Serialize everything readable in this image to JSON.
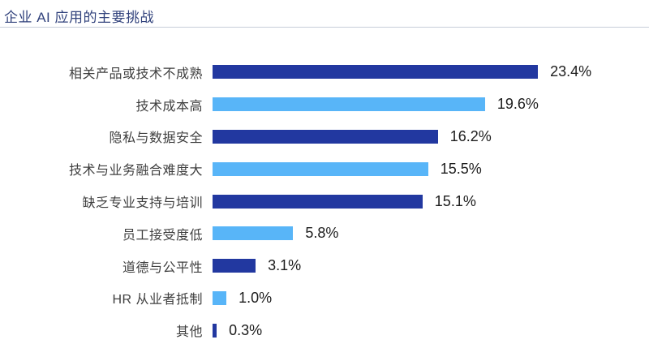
{
  "header": {
    "title": "企业 AI 应用的主要挑战"
  },
  "colors": {
    "dark_blue": "#2238a0",
    "light_blue": "#58b5f8",
    "title_text": "#31427c",
    "label_text": "#3f3f3f",
    "value_text": "#1c1c1c",
    "divider": "#c7cdd9"
  },
  "chart_data": {
    "type": "bar",
    "orientation": "horizontal",
    "title": "企业 AI 应用的主要挑战",
    "xlabel": "",
    "ylabel": "",
    "xlim": [
      0,
      25
    ],
    "grid": false,
    "legend": "none",
    "categories": [
      "相关产品或技术不成熟",
      "技术成本高",
      "隐私与数据安全",
      "技术与业务融合难度大",
      "缺乏专业支持与培训",
      "员工接受度低",
      "道德与公平性",
      "HR 从业者抵制",
      "其他"
    ],
    "values": [
      23.4,
      19.6,
      16.2,
      15.5,
      15.1,
      5.8,
      3.1,
      1.0,
      0.3
    ],
    "value_labels": [
      "23.4%",
      "19.6%",
      "16.2%",
      "15.5%",
      "15.1%",
      "5.8%",
      "3.1%",
      "1.0%",
      "0.3%"
    ],
    "bar_colors": [
      "dark",
      "light",
      "dark",
      "light",
      "dark",
      "light",
      "dark",
      "light",
      "dark"
    ]
  }
}
